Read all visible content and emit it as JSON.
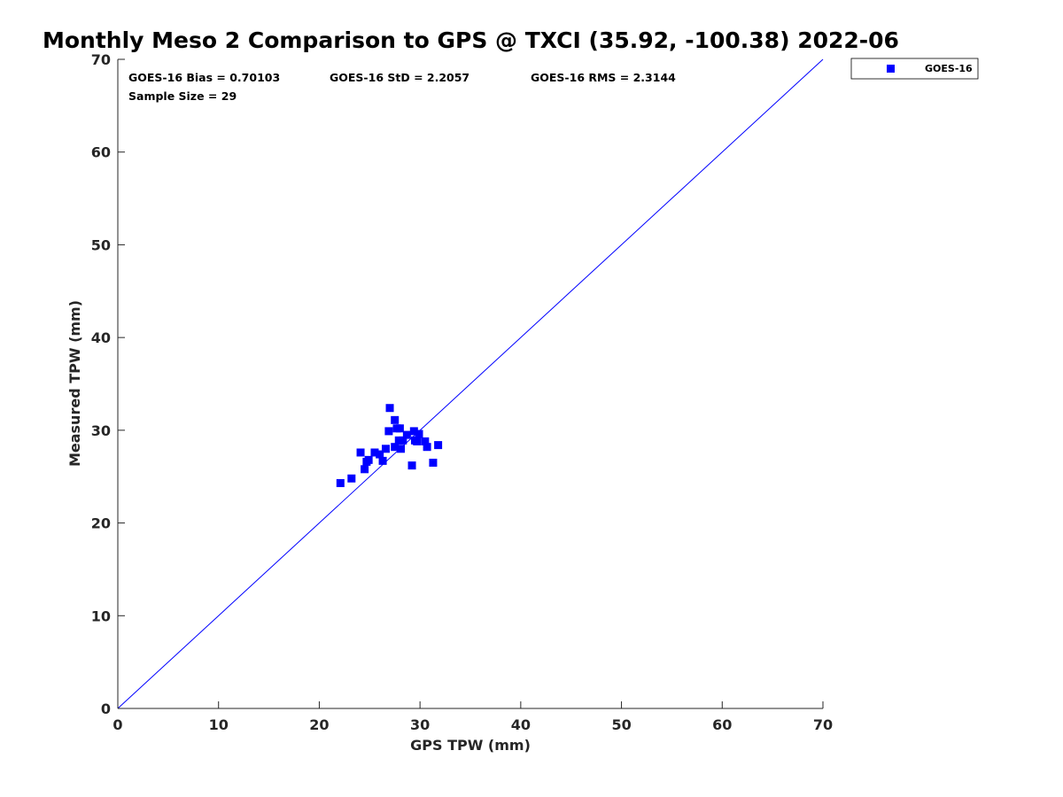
{
  "chart_data": {
    "type": "scatter",
    "title": "Monthly Meso 2 Comparison to GPS @ TXCI (35.92, -100.38) 2022-06",
    "xlabel": "GPS TPW (mm)",
    "ylabel": "Measured TPW (mm)",
    "xlim": [
      0,
      70
    ],
    "ylim": [
      0,
      70
    ],
    "xticks": [
      0,
      10,
      20,
      30,
      40,
      50,
      60,
      70
    ],
    "yticks": [
      0,
      10,
      20,
      30,
      40,
      50,
      60,
      70
    ],
    "grid": false,
    "legend_position": "outside-top-right",
    "stats": {
      "bias": "GOES-16 Bias = 0.70103",
      "std": "GOES-16 StD = 2.2057",
      "rms": "GOES-16 RMS = 2.3144",
      "sample": "Sample Size = 29"
    },
    "reference_line": {
      "from": [
        0,
        0
      ],
      "to": [
        70,
        70
      ],
      "color": "#0000ff"
    },
    "series": [
      {
        "name": "GOES-16",
        "marker": "square",
        "color": "#0000ff",
        "points": [
          [
            22.1,
            24.3
          ],
          [
            23.2,
            24.8
          ],
          [
            24.1,
            27.6
          ],
          [
            24.5,
            25.8
          ],
          [
            24.7,
            26.6
          ],
          [
            24.9,
            26.8
          ],
          [
            25.5,
            27.6
          ],
          [
            26.0,
            27.4
          ],
          [
            26.3,
            26.7
          ],
          [
            26.6,
            28.0
          ],
          [
            27.0,
            32.4
          ],
          [
            26.9,
            29.9
          ],
          [
            27.5,
            31.1
          ],
          [
            27.7,
            30.2
          ],
          [
            28.0,
            30.2
          ],
          [
            27.5,
            28.2
          ],
          [
            27.9,
            28.9
          ],
          [
            28.1,
            28.0
          ],
          [
            28.3,
            28.9
          ],
          [
            28.7,
            29.5
          ],
          [
            29.2,
            26.2
          ],
          [
            29.4,
            29.9
          ],
          [
            29.5,
            28.9
          ],
          [
            29.7,
            28.8
          ],
          [
            29.9,
            29.6
          ],
          [
            30.5,
            28.8
          ],
          [
            30.7,
            28.2
          ],
          [
            31.3,
            26.5
          ],
          [
            31.8,
            28.4
          ]
        ]
      }
    ]
  }
}
